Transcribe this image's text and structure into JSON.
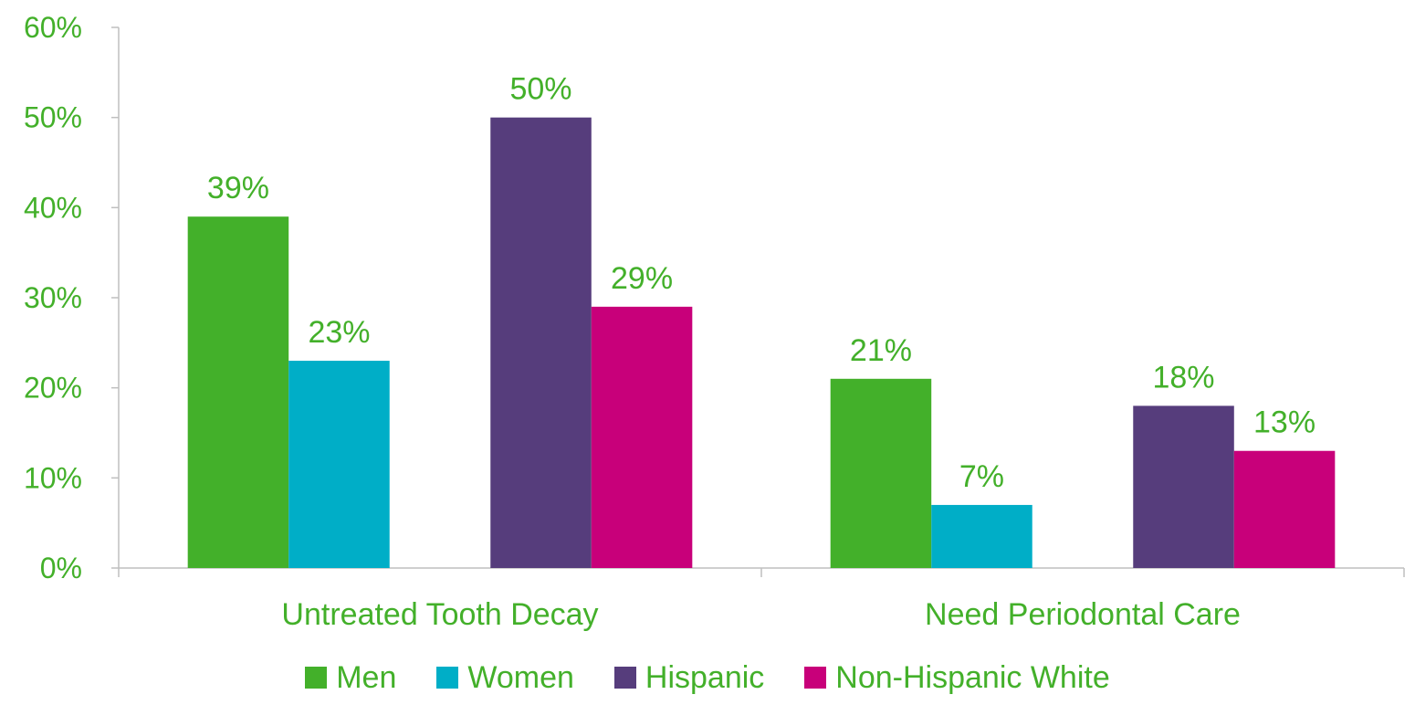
{
  "chart_data": {
    "type": "bar",
    "title": "",
    "xlabel": "",
    "ylabel": "",
    "ylim": [
      0,
      60
    ],
    "yticks": [
      0,
      10,
      20,
      30,
      40,
      50,
      60
    ],
    "ytick_labels": [
      "0%",
      "10%",
      "20%",
      "30%",
      "40%",
      "50%",
      "60%"
    ],
    "grid": false,
    "legend_position": "bottom-center",
    "text_color": "#43b02a",
    "axis_color": "#bfbfbf",
    "categories": [
      "Untreated Tooth Decay",
      "Need Periodontal Care"
    ],
    "series": [
      {
        "name": "Men",
        "color": "#43b02a",
        "values": [
          39,
          21
        ],
        "labels": [
          "39%",
          "21%"
        ]
      },
      {
        "name": "Women",
        "color": "#00aec7",
        "values": [
          23,
          7
        ],
        "labels": [
          "23%",
          "7%"
        ]
      },
      {
        "name": "Hispanic",
        "color": "#563d7c",
        "values": [
          50,
          18
        ],
        "labels": [
          "50%",
          "18%"
        ]
      },
      {
        "name": "Non-Hispanic White",
        "color": "#c8007a",
        "values": [
          29,
          13
        ],
        "labels": [
          "29%",
          "13%"
        ]
      }
    ]
  }
}
